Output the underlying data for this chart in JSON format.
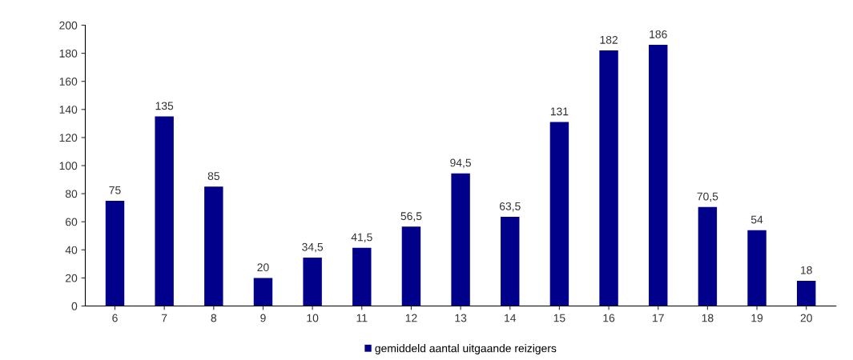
{
  "chart_data": {
    "type": "bar",
    "categories": [
      "6",
      "7",
      "8",
      "9",
      "10",
      "11",
      "12",
      "13",
      "14",
      "15",
      "16",
      "17",
      "18",
      "19",
      "20"
    ],
    "series": [
      {
        "name": "gemiddeld aantal uitgaande reizigers",
        "color": "#00008b",
        "values": [
          75,
          135,
          85,
          20,
          34.5,
          41.5,
          56.5,
          94.5,
          63.5,
          131,
          182,
          186,
          70.5,
          54,
          18
        ],
        "value_labels": [
          "75",
          "135",
          "85",
          "20",
          "34,5",
          "41,5",
          "56,5",
          "94,5",
          "63,5",
          "131",
          "182",
          "186",
          "70,5",
          "54",
          "18"
        ]
      }
    ],
    "ylim": [
      0,
      200
    ],
    "yticks": [
      0,
      20,
      40,
      60,
      80,
      100,
      120,
      140,
      160,
      180,
      200
    ],
    "grid": false,
    "legend": "bottom"
  }
}
